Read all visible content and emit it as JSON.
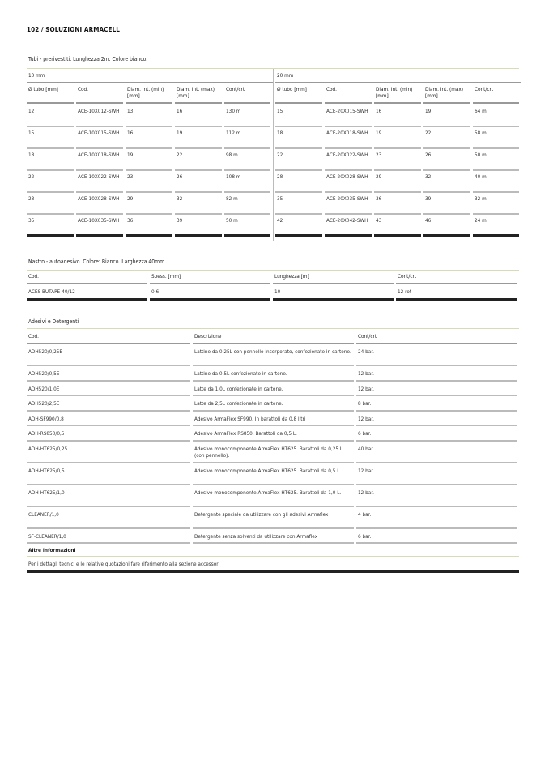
{
  "page_header": "102 / SOLUZIONI ARMACELL",
  "tubi": {
    "title": "Tubi - prerivestiti. Lunghezza 2m. Colore bianco.",
    "columns": [
      "Ø tubo [mm]",
      "Cod.",
      "Diam. Int. (min) [mm]",
      "Diam. Int. (max) [mm]",
      "Cont/crt"
    ],
    "groups": [
      {
        "label": "10 mm",
        "rows": [
          [
            "12",
            "ACE-10X012-SWH",
            "13",
            "16",
            "130 m"
          ],
          [
            "15",
            "ACE-10X015-SWH",
            "16",
            "19",
            "112 m"
          ],
          [
            "18",
            "ACE-10X018-SWH",
            "19",
            "22",
            "98 m"
          ],
          [
            "22",
            "ACE-10X022-SWH",
            "23",
            "26",
            "108 m"
          ],
          [
            "28",
            "ACE-10X028-SWH",
            "29",
            "32",
            "82 m"
          ],
          [
            "35",
            "ACE-10X035-SWH",
            "36",
            "39",
            "50 m"
          ]
        ]
      },
      {
        "label": "20 mm",
        "rows": [
          [
            "15",
            "ACE-20X015-SWH",
            "16",
            "19",
            "64 m"
          ],
          [
            "18",
            "ACE-20X018-SWH",
            "19",
            "22",
            "58 m"
          ],
          [
            "22",
            "ACE-20X022-SWH",
            "23",
            "26",
            "50 m"
          ],
          [
            "28",
            "ACE-20X028-SWH",
            "29",
            "32",
            "40 m"
          ],
          [
            "35",
            "ACE-20X035-SWH",
            "36",
            "39",
            "32 m"
          ],
          [
            "42",
            "ACE-20X042-SWH",
            "43",
            "46",
            "24 m"
          ]
        ]
      }
    ]
  },
  "nastro": {
    "title": "Nastro - autoadesivo. Colore: Bianco. Larghezza 40mm.",
    "columns": [
      "Cod.",
      "Spess. [mm]",
      "Lunghezza [m]",
      "Cont/crt"
    ],
    "rows": [
      [
        "ACES-BUTAPE-40/12",
        "0,6",
        "10",
        "12 rot"
      ]
    ]
  },
  "adesivi": {
    "title": "Adesivi e Detergenti",
    "columns": [
      "Cod.",
      "Descrizione",
      "Cont/crt"
    ],
    "rows": [
      [
        "ADH520/0,25E",
        "Lattine da 0,25L con pennello incorporato, confezionate in cartone.",
        "24 bar."
      ],
      [
        "ADH520/0,5E",
        "Lattine da 0,5L confezionate in cartone.",
        "12 bar."
      ],
      [
        "ADH520/1,0E",
        "Latte da 1,0L confezionate in cartone.",
        "12 bar."
      ],
      [
        "ADH520/2,5E",
        "Latte da 2,5L confezionate in cartone.",
        "8 bar."
      ],
      [
        "ADH-SF990/0,8",
        "Adesivo ArmaFlex SF990. In barattoli da 0,8 litri",
        "12 bar."
      ],
      [
        "ADH-RS850/0,5",
        "Adesivo ArmaFlex RS850. Barattoli da 0,5 L.",
        "6 bar."
      ],
      [
        "ADH-HT625/0,25",
        "Adesivo monocomponente ArmaFlex HT625. Barattoli da 0,25 L (con pennello).",
        "40 bar."
      ],
      [
        "ADH-HT625/0,5",
        "Adesivo monocomponente ArmaFlex HT625. Barattoli da 0,5 L.",
        "12 bar."
      ],
      [
        "ADH-HT625/1,0",
        "Adesivo monocomponente ArmaFlex HT625. Barattoli da 1,0 L.",
        "12 bar."
      ],
      [
        "CLEANER/1,0",
        "Detergente speciale da utilizzare con gli adesivi Armaflex",
        "4 bar."
      ],
      [
        "SF-CLEANER/1,0",
        "Detergente senza solventi da utilizzare con Armaflex",
        "6 bar."
      ]
    ],
    "altre_label": "Altre informazioni",
    "altre_text": "Per i dettagli tecnici e le relative quotazioni fare riferimento alla sezione accessori"
  }
}
